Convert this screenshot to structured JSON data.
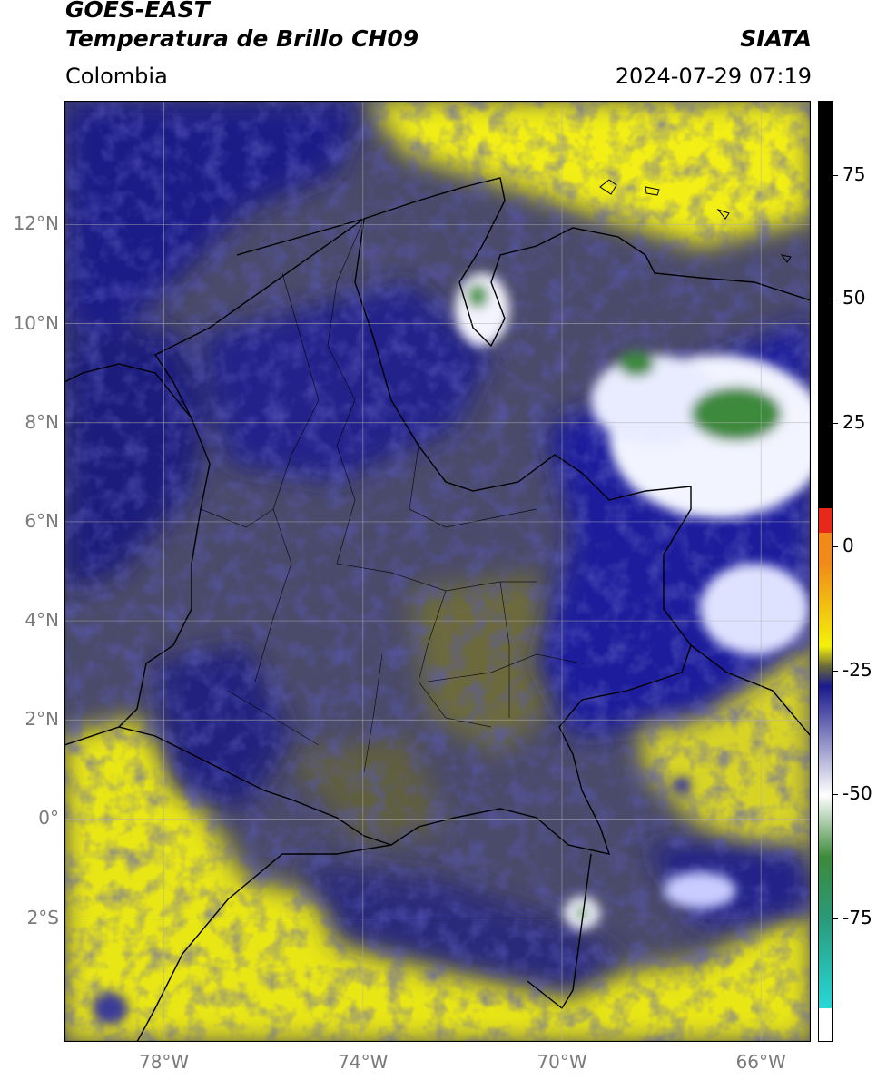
{
  "header": {
    "satellite": "GOES-EAST",
    "product": "Temperatura de Brillo CH09",
    "brand": "SIATA",
    "region": "Colombia",
    "timestamp": "2024-07-29 07:19"
  },
  "map": {
    "lat_labels": [
      "12°N",
      "10°N",
      "8°N",
      "6°N",
      "4°N",
      "2°N",
      "0°",
      "2°S"
    ],
    "lon_labels": [
      "78°W",
      "74°W",
      "70°W",
      "66°W"
    ],
    "lat_range": [
      -4.5,
      14.5
    ],
    "lon_range": [
      -80,
      -65
    ],
    "grid": true
  },
  "colorbar": {
    "labels": [
      "75",
      "50",
      "25",
      "0",
      "-25",
      "-50",
      "-75"
    ],
    "colors": {
      "black": "#000000",
      "red": "#e8281a",
      "orange": "#f08a1a",
      "yellow": "#f4f10a",
      "olive": "#6b6b3a",
      "navy": "#1a1a8c",
      "white": "#ffffff",
      "green": "#3d8a3a",
      "cyan": "#28d8d8"
    }
  }
}
